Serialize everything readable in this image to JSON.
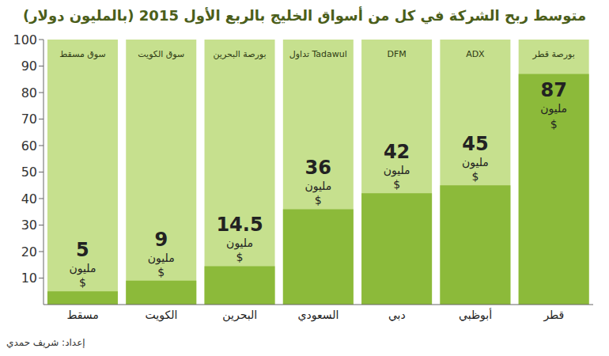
{
  "chart_data": {
    "type": "bar",
    "title": "متوسط ربح الشركة في كل من أسواق الخليج بالربع الأول 2015 (بالمليون دولار)",
    "categories": [
      "مسقط",
      "الكويت",
      "البحرين",
      "السعودي",
      "دبي",
      "أبوظبي",
      "قطر"
    ],
    "values": [
      5,
      9,
      14.5,
      36,
      42,
      45,
      87
    ],
    "value_labels": [
      "5 مليون $",
      "9 مليون $",
      "14.5 مليون $",
      "36 مليون $",
      "42 مليون $",
      "45 مليون $",
      "87 مليون $"
    ],
    "logo_texts": [
      "سوق مسقط",
      "سوق الكويت",
      "بورصة البحرين",
      "تداول Tadawul",
      "DFM",
      "ADX",
      "بورصة قطر"
    ],
    "color": "#8cba3a",
    "ylim": [
      0,
      100
    ],
    "yticks": [
      10,
      20,
      30,
      40,
      50,
      60,
      70,
      80,
      90,
      100
    ],
    "grid": false,
    "data_labels": true,
    "annotations": [
      "إعداد: شريف حمدي"
    ]
  }
}
